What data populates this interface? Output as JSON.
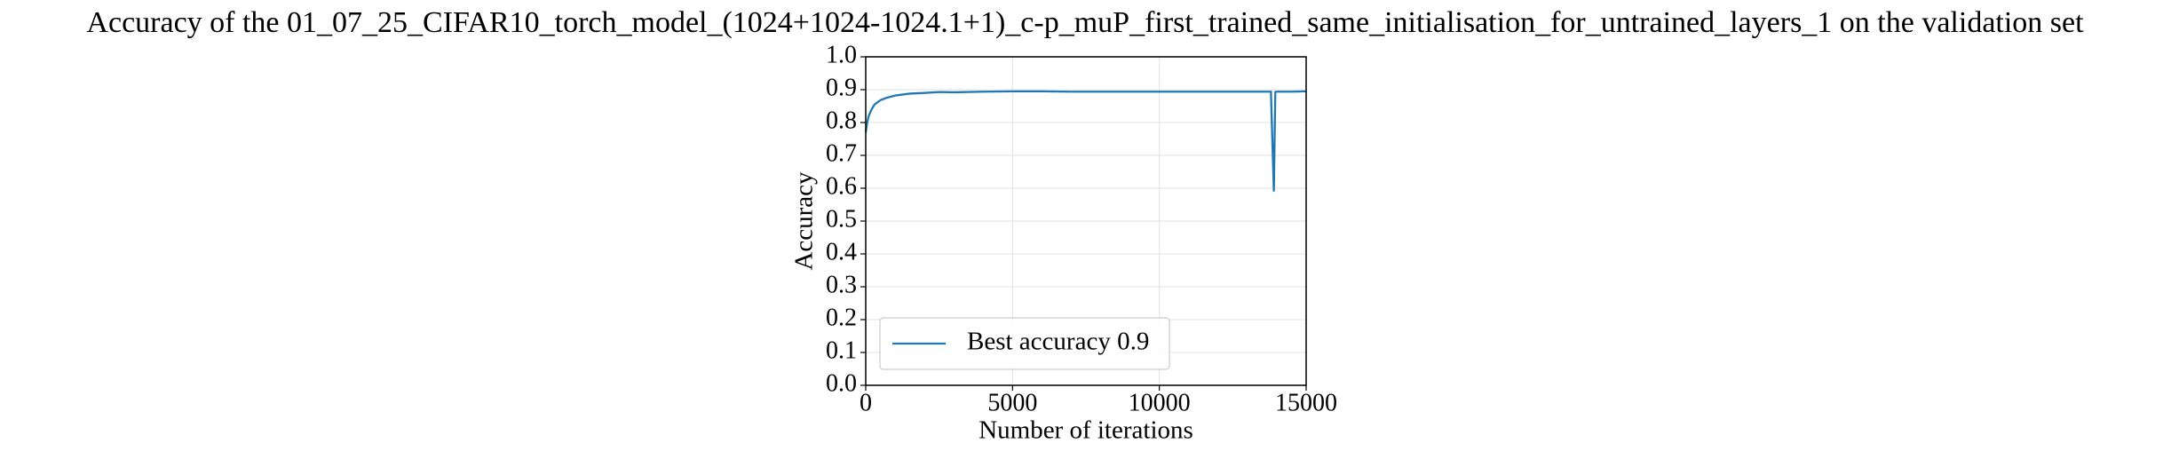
{
  "chart_data": {
    "type": "line",
    "title": "Accuracy of the 01_07_25_CIFAR10_torch_model_(1024+1024-1024.1+1)_c-p_muP_first_trained_same_initialisation_for_untrained_layers_1 on the validation set",
    "x_label": "Number of iterations",
    "y_label": "Accuracy",
    "x": [
      0,
      50,
      100,
      200,
      300,
      500,
      700,
      1000,
      1500,
      2000,
      2500,
      3000,
      4000,
      5000,
      6000,
      7000,
      8000,
      9000,
      10000,
      11000,
      12000,
      13000,
      13800,
      13900,
      13950,
      14000,
      14500,
      15000
    ],
    "series": [
      {
        "name": "Best accuracy 0.9",
        "color": "#1f77b4",
        "values": [
          0.77,
          0.8,
          0.82,
          0.84,
          0.855,
          0.868,
          0.875,
          0.882,
          0.888,
          0.89,
          0.893,
          0.892,
          0.894,
          0.895,
          0.895,
          0.894,
          0.894,
          0.894,
          0.894,
          0.894,
          0.894,
          0.894,
          0.894,
          0.59,
          0.893,
          0.894,
          0.894,
          0.895
        ]
      }
    ],
    "xlim": [
      0,
      15000
    ],
    "xticks": [
      0,
      5000,
      10000,
      15000
    ],
    "ylim": [
      0,
      1
    ],
    "yticks": [
      {
        "value": 0,
        "label": "0.0"
      },
      0.1,
      0.2,
      0.3,
      0.4,
      0.5,
      0.6,
      0.7,
      0.8,
      0.9,
      {
        "value": 1,
        "label": "1.0"
      }
    ],
    "grid": true,
    "legend_position": "lower-left"
  }
}
